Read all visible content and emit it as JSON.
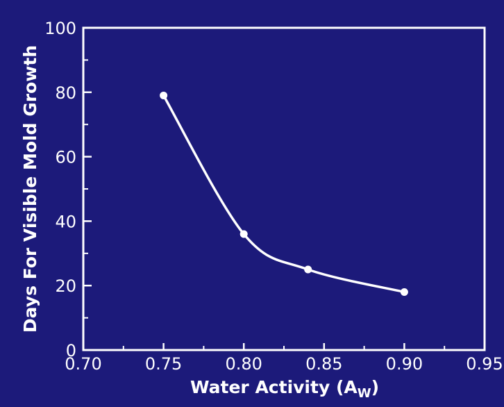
{
  "chart_data": {
    "type": "line",
    "title": "",
    "xlabel_main": "Water Activity (A",
    "xlabel_sub": "W",
    "xlabel_close": ")",
    "ylabel": "Days For Visible Mold Growth",
    "x": [
      0.75,
      0.8,
      0.84,
      0.9
    ],
    "y": [
      79,
      36,
      25,
      18
    ],
    "xlim": [
      0.7,
      0.95
    ],
    "ylim": [
      0,
      100
    ],
    "xticks": [
      "0.70",
      "0.75",
      "0.80",
      "0.85",
      "0.90",
      "0.95"
    ],
    "yticks": [
      "0",
      "20",
      "40",
      "60",
      "80",
      "100"
    ],
    "grid": false,
    "legend": "none",
    "colors": {
      "background": "#1c1a7a",
      "foreground": "#ffffff"
    }
  }
}
